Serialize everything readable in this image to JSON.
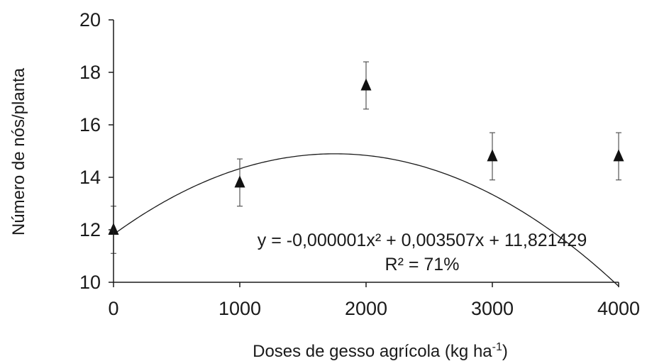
{
  "chart_data": {
    "type": "scatter",
    "title": "",
    "xlabel": "Doses de gesso agrícola (kg ha",
    "xlabel_sup": "-1",
    "xlabel_end": ")",
    "ylabel": "Número de nós/planta",
    "xlim": [
      0,
      4000
    ],
    "ylim": [
      10,
      20
    ],
    "x_ticks": [
      "0",
      "1000",
      "2000",
      "3000",
      "4000"
    ],
    "y_ticks": [
      "10",
      "12",
      "14",
      "16",
      "18",
      "20"
    ],
    "grid": false,
    "legend": "none",
    "series": [
      {
        "x": [
          0,
          1000,
          2000,
          3000,
          4000
        ],
        "y": [
          12.0,
          13.8,
          17.5,
          14.8,
          14.8
        ],
        "error": [
          0.9,
          0.9,
          0.9,
          0.9,
          0.9
        ],
        "marker": "triangle"
      }
    ],
    "fit": {
      "a": -1e-06,
      "b": 0.003507,
      "c": 11.821429,
      "equation_text": "y = -0,000001x² + 0,003507x + 11,821429",
      "r2_text": "R² = 71%"
    }
  }
}
